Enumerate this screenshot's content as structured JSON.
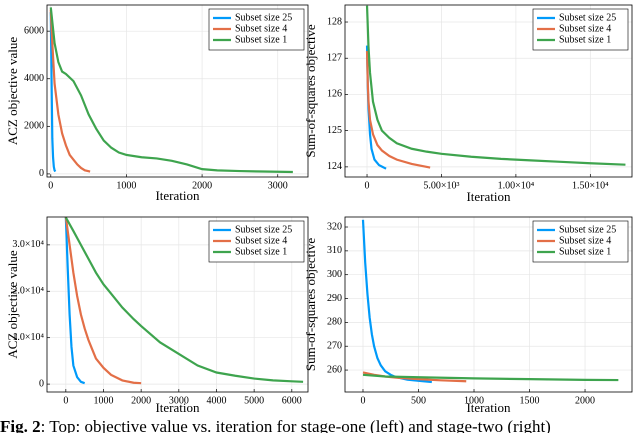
{
  "chart_data": [
    {
      "type": "line",
      "x_label": "Iteration",
      "y_label": "ACZ objective value",
      "legend": "upper right",
      "grid": true,
      "xlim": [
        -50,
        3400
      ],
      "ylim": [
        -130,
        7100
      ],
      "xticks": [
        0,
        1000,
        2000,
        3000
      ],
      "yticks": [
        0,
        2000,
        4000,
        6000
      ],
      "series": [
        {
          "name": "Subset size 25",
          "color": "#009afa",
          "x": [
            0,
            10,
            20,
            30,
            40,
            50,
            60
          ],
          "values": [
            6800,
            4000,
            1500,
            700,
            300,
            150,
            100
          ]
        },
        {
          "name": "Subset size 4",
          "color": "#e36f47",
          "x": [
            0,
            20,
            50,
            100,
            150,
            200,
            250,
            300,
            350,
            400,
            450,
            520
          ],
          "values": [
            6900,
            5500,
            3800,
            2500,
            1700,
            1200,
            800,
            600,
            400,
            250,
            150,
            100
          ]
        },
        {
          "name": "Subset size 1",
          "color": "#3ea44e",
          "x": [
            0,
            50,
            100,
            150,
            200,
            300,
            400,
            500,
            600,
            700,
            800,
            900,
            1000,
            1200,
            1400,
            1600,
            1800,
            2000,
            2200,
            2500,
            2800,
            3200
          ],
          "values": [
            7000,
            5500,
            4700,
            4300,
            4200,
            3900,
            3300,
            2500,
            1900,
            1400,
            1100,
            900,
            800,
            700,
            650,
            550,
            400,
            200,
            150,
            120,
            100,
            80
          ]
        }
      ]
    },
    {
      "type": "line",
      "x_label": "Iteration",
      "y_label": "Sum-of-squares objective",
      "legend": "upper right",
      "grid": true,
      "xlim": [
        -1480,
        17800
      ],
      "ylim": [
        123.72,
        128.47
      ],
      "xticks": [
        0,
        {
          "value": 5000,
          "label": "5.00×10³"
        },
        {
          "value": 10000,
          "label": "1.00×10⁴"
        },
        {
          "value": 15000,
          "label": "1.50×10⁴"
        }
      ],
      "yticks": [
        124,
        125,
        126,
        127,
        128
      ],
      "series": [
        {
          "name": "Subset size 25",
          "color": "#009afa",
          "x": [
            0,
            50,
            100,
            200,
            300,
            500,
            800,
            1280
          ],
          "values": [
            127.35,
            126.2,
            125.6,
            124.9,
            124.5,
            124.2,
            124.05,
            123.95
          ]
        },
        {
          "name": "Subset size 4",
          "color": "#e36f47",
          "x": [
            0,
            50,
            100,
            200,
            400,
            700,
            1000,
            1500,
            2000,
            3000,
            4240
          ],
          "values": [
            127.2,
            126.3,
            125.8,
            125.3,
            124.9,
            124.6,
            124.45,
            124.3,
            124.2,
            124.08,
            123.98
          ]
        },
        {
          "name": "Subset size 1",
          "color": "#3ea44e",
          "x": [
            0,
            100,
            200,
            400,
            700,
            1000,
            1500,
            2000,
            3000,
            4000,
            5000,
            7000,
            9000,
            11000,
            13000,
            15000,
            17360
          ],
          "values": [
            128.45,
            127.3,
            126.6,
            125.8,
            125.3,
            125.0,
            124.8,
            124.65,
            124.5,
            124.42,
            124.36,
            124.28,
            124.22,
            124.18,
            124.14,
            124.1,
            124.06
          ]
        }
      ]
    },
    {
      "type": "line",
      "x_label": "Iteration",
      "y_label": "ACZ objective value",
      "legend": "upper right",
      "grid": true,
      "xlim": [
        -500,
        6430
      ],
      "ylim": [
        -1700,
        36000
      ],
      "xticks": [
        0,
        1000,
        2000,
        3000,
        4000,
        5000,
        6000
      ],
      "yticks": [
        0,
        {
          "value": 10000,
          "label": "1.0×10⁴"
        },
        {
          "value": 20000,
          "label": "2.0×10⁴"
        },
        {
          "value": 30000,
          "label": "3.0×10⁴"
        }
      ],
      "series": [
        {
          "name": "Subset size 25",
          "color": "#009afa",
          "x": [
            0,
            50,
            100,
            150,
            200,
            300,
            400,
            500
          ],
          "values": [
            36000,
            25000,
            15000,
            8000,
            4000,
            1500,
            500,
            200
          ]
        },
        {
          "name": "Subset size 4",
          "color": "#e36f47",
          "x": [
            0,
            100,
            200,
            300,
            400,
            500,
            600,
            700,
            800,
            1000,
            1200,
            1500,
            1800,
            2000
          ],
          "values": [
            36000,
            30000,
            24000,
            19000,
            15000,
            12000,
            9500,
            7500,
            5500,
            3500,
            2000,
            800,
            300,
            200
          ]
        },
        {
          "name": "Subset size 1",
          "color": "#3ea44e",
          "x": [
            0,
            200,
            400,
            600,
            800,
            1000,
            1200,
            1500,
            1800,
            2000,
            2500,
            3000,
            3500,
            4000,
            4500,
            5000,
            5500,
            6000,
            6300
          ],
          "values": [
            35900,
            33000,
            30000,
            27000,
            24000,
            21500,
            19500,
            16500,
            14000,
            12500,
            9000,
            6500,
            4000,
            2500,
            1800,
            1200,
            800,
            600,
            500
          ]
        }
      ]
    },
    {
      "type": "line",
      "x_label": "Iteration",
      "y_label": "Sum-of-squares objective",
      "legend": "upper right",
      "grid": true,
      "xlim": [
        -162,
        2423
      ],
      "ylim": [
        250.8,
        324.2
      ],
      "xticks": [
        0,
        500,
        1000,
        1500,
        2000
      ],
      "yticks": [
        260,
        270,
        280,
        290,
        300,
        310,
        320
      ],
      "series": [
        {
          "name": "Subset size 25",
          "color": "#009afa",
          "x": [
            0,
            20,
            40,
            60,
            80,
            100,
            130,
            160,
            200,
            250,
            300,
            400,
            500,
            620
          ],
          "values": [
            323,
            305,
            292,
            282,
            275,
            270,
            265,
            262,
            259.5,
            258,
            257,
            256,
            255.5,
            255
          ]
        },
        {
          "name": "Subset size 4",
          "color": "#e36f47",
          "x": [
            0,
            100,
            200,
            300,
            500,
            700,
            930
          ],
          "values": [
            259,
            258,
            257.3,
            256.8,
            256.2,
            255.7,
            255.3
          ]
        },
        {
          "name": "Subset size 1",
          "color": "#3ea44e",
          "x": [
            0,
            200,
            500,
            1000,
            1500,
            2000,
            2300
          ],
          "values": [
            258,
            257.3,
            257,
            256.5,
            256.2,
            255.9,
            255.8
          ]
        }
      ]
    }
  ],
  "caption": {
    "label": "Fig. 2",
    "text": ": Top: objective value vs. iteration for stage-one (left) and stage-two (right)"
  }
}
